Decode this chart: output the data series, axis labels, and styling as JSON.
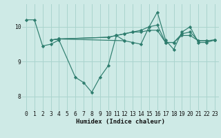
{
  "xlabel": "Humidex (Indice chaleur)",
  "bg_color": "#ceeae6",
  "grid_color": "#aad4ce",
  "line_color": "#2e7d6e",
  "xlim": [
    -0.5,
    23.5
  ],
  "ylim": [
    7.6,
    10.65
  ],
  "yticks": [
    8,
    9,
    10
  ],
  "xticks": [
    0,
    1,
    2,
    3,
    4,
    5,
    6,
    7,
    8,
    9,
    10,
    11,
    12,
    13,
    14,
    15,
    16,
    17,
    18,
    19,
    20,
    21,
    22,
    23
  ],
  "series": [
    [
      10.2,
      10.2,
      9.45,
      9.5,
      9.62,
      null,
      8.55,
      8.4,
      8.12,
      8.55,
      8.88,
      9.75,
      9.6,
      9.55,
      9.5,
      10.0,
      10.42,
      9.62,
      9.35,
      9.85,
      10.0,
      9.55,
      9.55,
      9.62
    ],
    [
      null,
      null,
      null,
      9.62,
      9.65,
      null,
      null,
      null,
      null,
      null,
      null,
      null,
      9.6,
      null,
      null,
      null,
      null,
      null,
      null,
      null,
      null,
      null,
      null,
      null
    ],
    [
      null,
      null,
      null,
      9.62,
      9.65,
      null,
      null,
      null,
      null,
      null,
      9.7,
      9.75,
      9.8,
      9.85,
      9.85,
      9.9,
      9.9,
      9.55,
      9.55,
      9.75,
      9.75,
      9.6,
      9.6,
      9.62
    ],
    [
      null,
      null,
      null,
      9.62,
      9.65,
      null,
      null,
      null,
      null,
      null,
      9.7,
      9.75,
      9.8,
      9.85,
      9.9,
      10.0,
      10.05,
      9.55,
      9.55,
      9.8,
      9.85,
      9.6,
      9.6,
      9.62
    ]
  ]
}
